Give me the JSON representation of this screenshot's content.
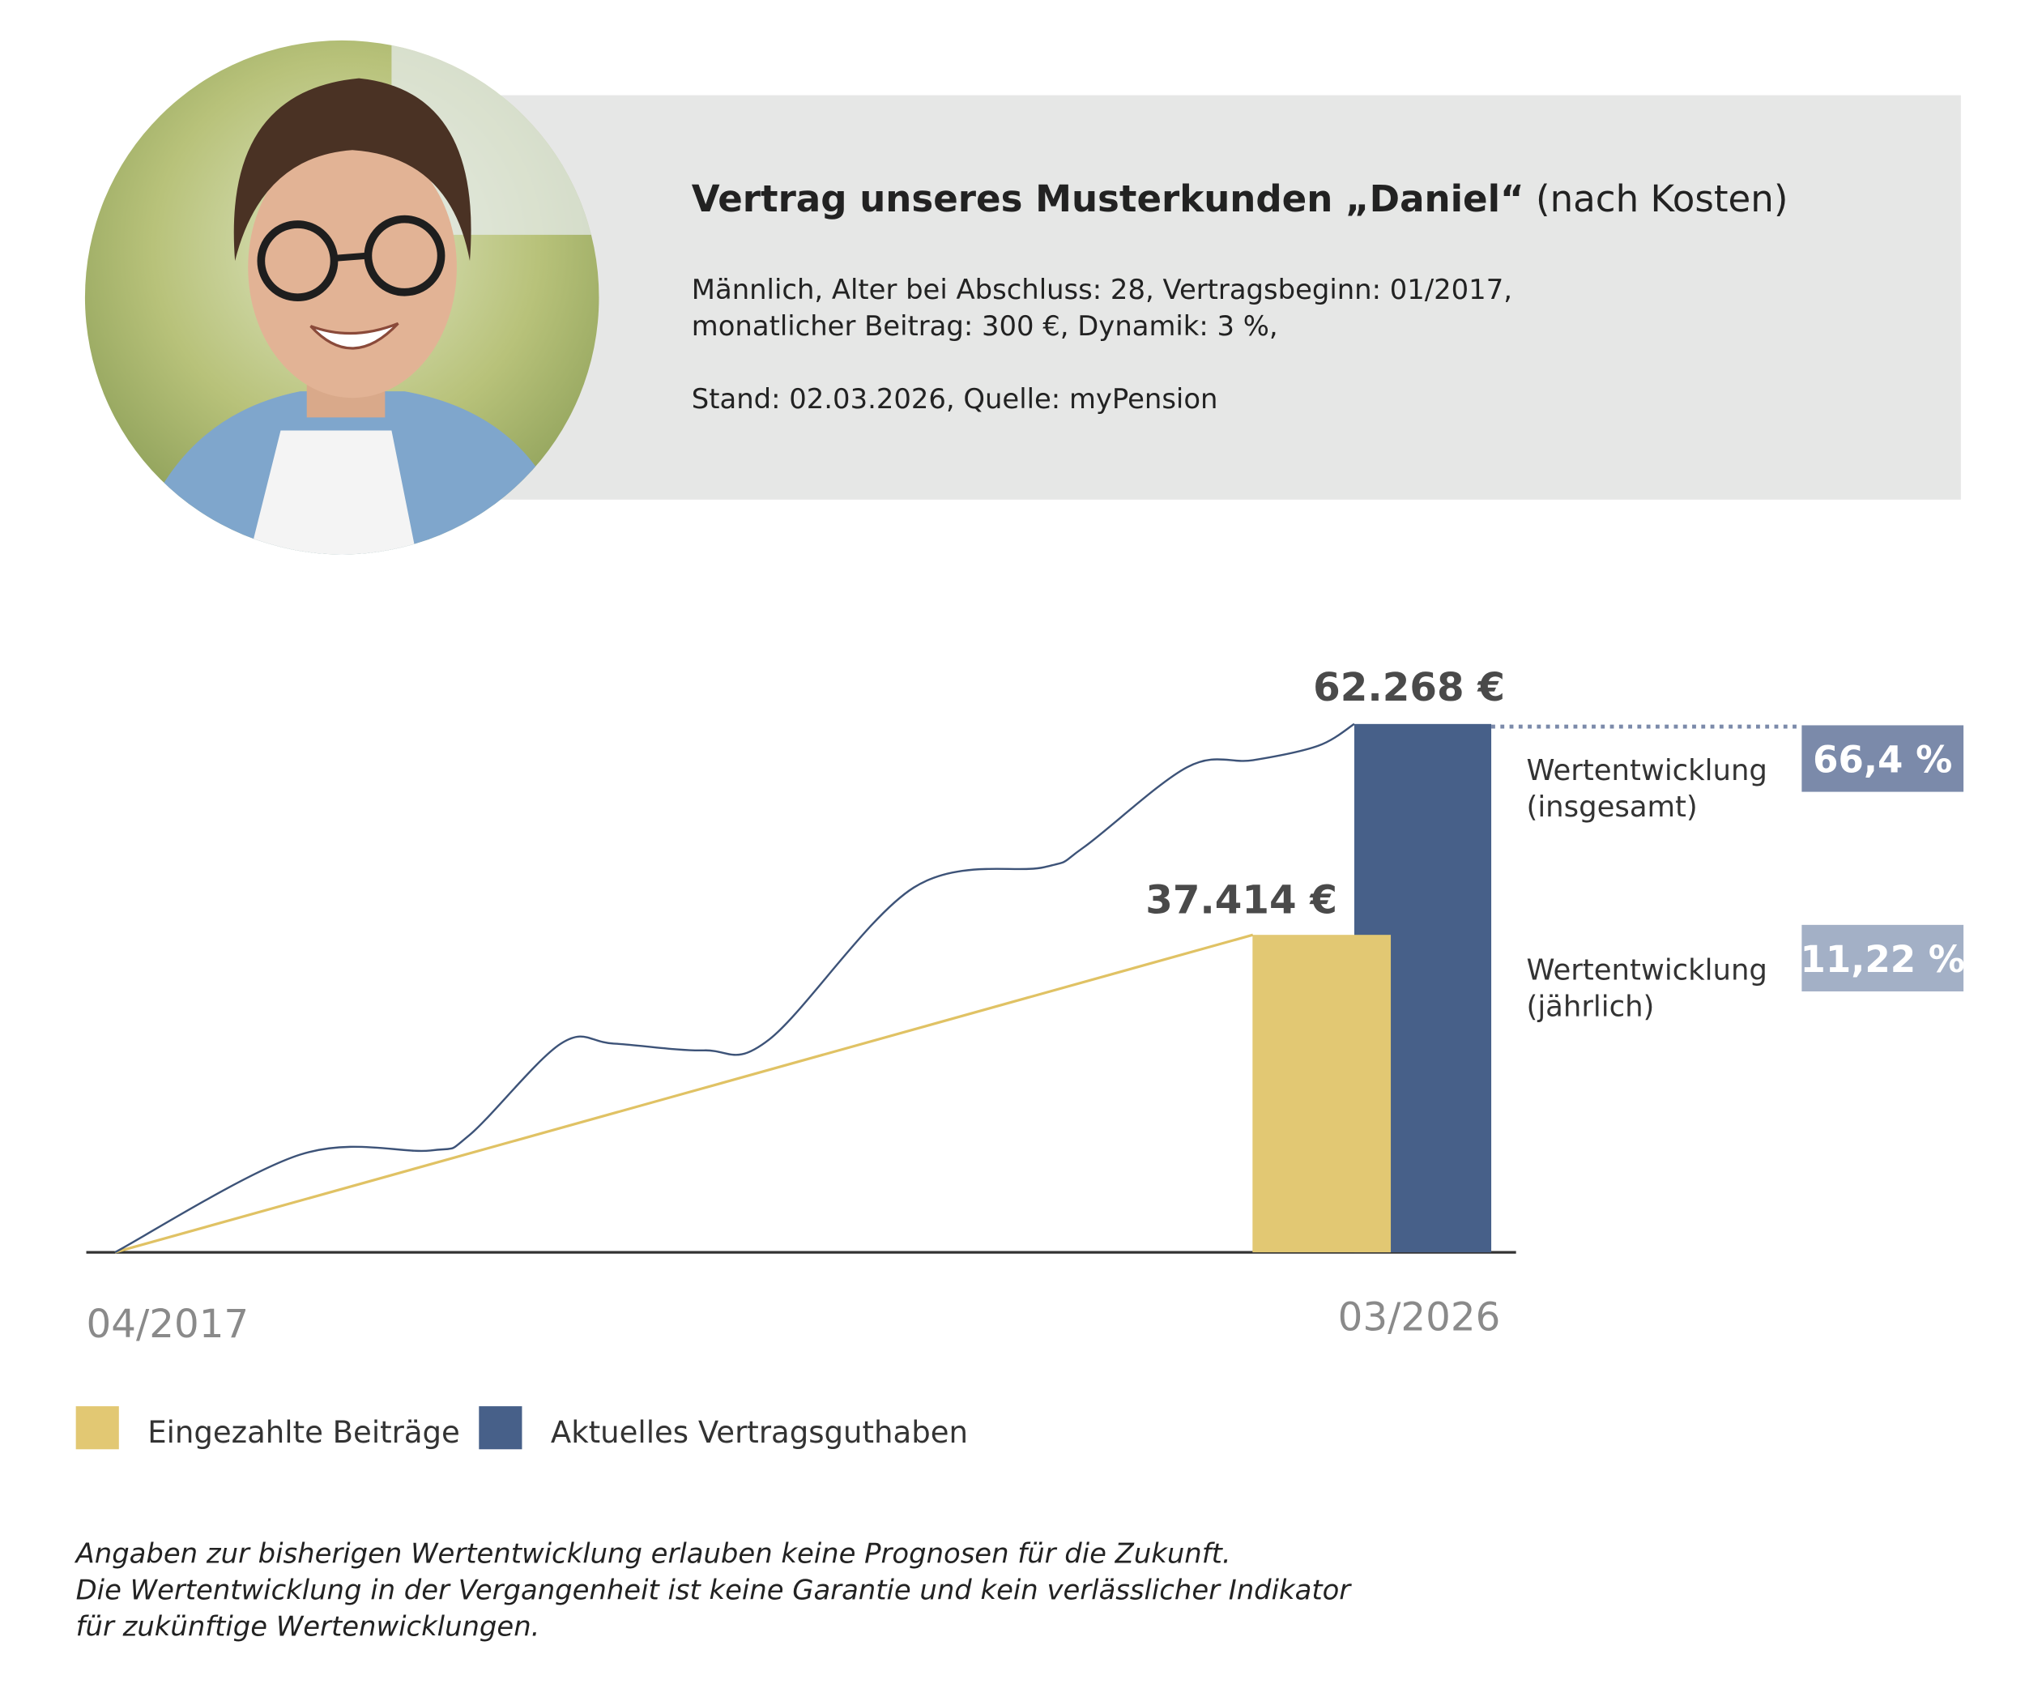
{
  "header": {
    "title": "Vertrag unseres Musterkunden „Daniel“",
    "title_suffix": " (nach Kosten)",
    "details": [
      "Männlich, Alter bei Abschluss: 28, Vertragsbeginn: 01/2017,",
      "monatlicher Beitrag: 300 €, Dynamik: 3 %,"
    ],
    "source": "Stand: 02.03.2026, Quelle: myPension"
  },
  "chart_data": {
    "type": "line",
    "xlim": [
      2017.25,
      2026.17
    ],
    "xticks": [
      {
        "value": 2017.25,
        "label": "04/2017"
      },
      {
        "value": 2026.17,
        "label": "03/2026"
      }
    ],
    "ylim": [
      0,
      62268
    ],
    "series": [
      {
        "name": "Eingezahlte Beiträge",
        "color": "#e2c873",
        "line_color": "#e0c264",
        "x": [
          2017.25,
          2025.44
        ],
        "values": [
          0,
          37414
        ],
        "value_labels": [
          null,
          "37.414 €"
        ]
      },
      {
        "name": "Aktuelles Vertragsguthaben",
        "color": "#476089",
        "line_color": "#3d5378",
        "x": [
          2017.25,
          2018.58,
          2019.52,
          2019.8,
          2020.46,
          2020.84,
          2021.49,
          2021.96,
          2023.0,
          2023.94,
          2024.22,
          2024.97,
          2025.44,
          2025.91,
          2026.17
        ],
        "values": [
          0,
          11500,
          12000,
          13800,
          24600,
          24600,
          23800,
          25100,
          43000,
          45400,
          47700,
          57200,
          58000,
          59700,
          62268
        ],
        "value_labels": [
          null,
          null,
          null,
          null,
          null,
          null,
          null,
          null,
          null,
          null,
          null,
          null,
          null,
          null,
          "62.268 €"
        ]
      }
    ],
    "annotations": [
      {
        "label": [
          "Wertentwicklung",
          "(insgesamt)"
        ],
        "value": 66.4,
        "value_label": "66,4 %",
        "color": "#7b8aaa"
      },
      {
        "label": [
          "Wertentwicklung",
          "(jährlich)"
        ],
        "value": 11.22,
        "value_label": "11,22 %",
        "color": "#a3b0c6"
      }
    ]
  },
  "footnote": [
    "Angaben zur bisherigen Wertentwicklung erlauben keine Prognosen für die Zukunft.",
    "Die Wertentwicklung in der Vergangenheit ist keine Garantie und kein verlässlicher Indikator",
    "für zukünftige Wertenwicklungen."
  ]
}
